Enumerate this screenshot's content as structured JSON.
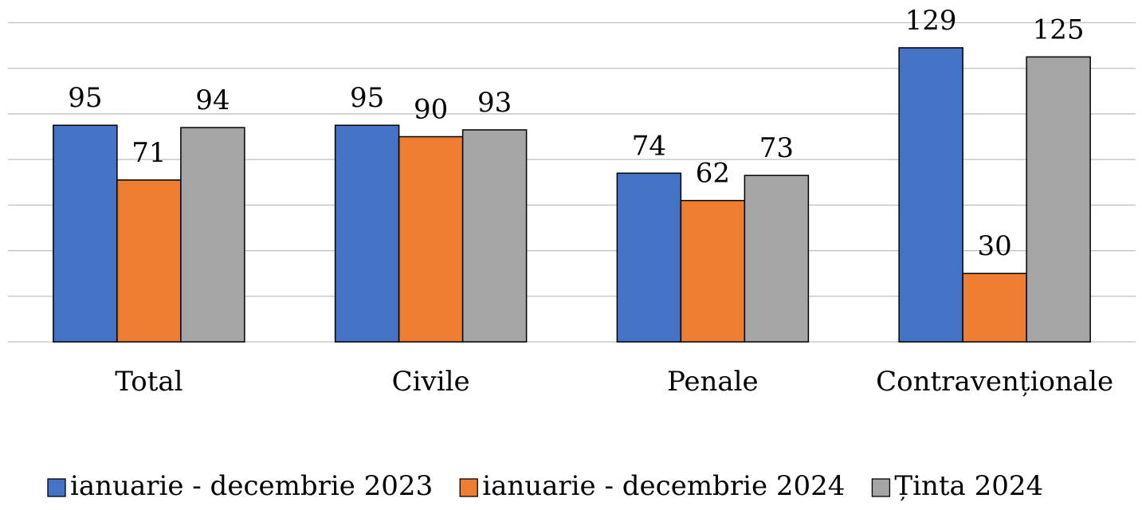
{
  "chart_data": {
    "type": "bar",
    "categories": [
      "Total",
      "Civile",
      "Penale",
      "Contravenționale"
    ],
    "series": [
      {
        "name": "ianuarie - decembrie 2023",
        "color": "#4472c4",
        "values": [
          95,
          95,
          74,
          129
        ]
      },
      {
        "name": "ianuarie - decembrie 2024",
        "color": "#ed7d31",
        "values": [
          71,
          90,
          62,
          30
        ]
      },
      {
        "name": "Ținta 2024",
        "color": "#a5a5a5",
        "values": [
          94,
          93,
          73,
          125
        ]
      }
    ],
    "ylim": [
      0,
      140
    ],
    "yticks": [
      0,
      20,
      40,
      60,
      80,
      100,
      120,
      140
    ],
    "grid": true,
    "legend": "bottom"
  }
}
